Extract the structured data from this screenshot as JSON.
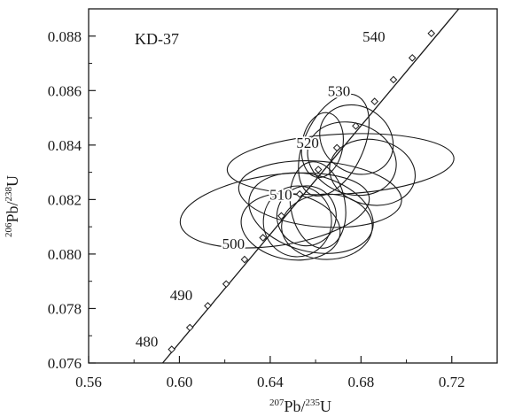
{
  "chart_data": {
    "type": "scatter",
    "title": "",
    "sample_label": "KD-37",
    "xlabel": {
      "sup1": "207",
      "el1": "Pb/",
      "sup2": "235",
      "el2": "U"
    },
    "ylabel": {
      "sup1": "206",
      "el1": "Pb/",
      "sup2": "238",
      "el2": "U"
    },
    "xlim": [
      0.56,
      0.74
    ],
    "ylim": [
      0.076,
      0.089
    ],
    "xticks": [
      0.56,
      0.6,
      0.64,
      0.68,
      0.72
    ],
    "xtick_labels": [
      "0.56",
      "0.60",
      "0.64",
      "0.68",
      "0.72"
    ],
    "yticks": [
      0.076,
      0.078,
      0.08,
      0.082,
      0.084,
      0.086,
      0.088
    ],
    "ytick_labels": [
      "0.076",
      "0.078",
      "0.080",
      "0.082",
      "0.084",
      "0.086",
      "0.088"
    ],
    "grid": false,
    "concordia": {
      "line": [
        [
          0.5926,
          0.076
        ],
        [
          0.7231,
          0.089
        ]
      ],
      "markers": [
        {
          "x": 0.5966,
          "y": 0.0765
        },
        {
          "x": 0.6046,
          "y": 0.0773
        },
        {
          "x": 0.6125,
          "y": 0.0781
        },
        {
          "x": 0.6206,
          "y": 0.0789
        },
        {
          "x": 0.6287,
          "y": 0.0798
        },
        {
          "x": 0.6368,
          "y": 0.0806
        },
        {
          "x": 0.6449,
          "y": 0.0814
        },
        {
          "x": 0.653,
          "y": 0.0822
        },
        {
          "x": 0.6612,
          "y": 0.0831
        },
        {
          "x": 0.6694,
          "y": 0.0839
        },
        {
          "x": 0.6777,
          "y": 0.0847
        },
        {
          "x": 0.686,
          "y": 0.0856
        },
        {
          "x": 0.6943,
          "y": 0.0864
        },
        {
          "x": 0.7026,
          "y": 0.0872
        },
        {
          "x": 0.711,
          "y": 0.0881
        }
      ],
      "age_labels": [
        {
          "text": "480",
          "x": 0.5856,
          "y": 0.0766
        },
        {
          "text": "490",
          "x": 0.6008,
          "y": 0.0783
        },
        {
          "text": "500",
          "x": 0.6238,
          "y": 0.0802
        },
        {
          "text": "510",
          "x": 0.6447,
          "y": 0.082
        },
        {
          "text": "520",
          "x": 0.6565,
          "y": 0.0839
        },
        {
          "text": "530",
          "x": 0.6703,
          "y": 0.0858
        },
        {
          "text": "540",
          "x": 0.6857,
          "y": 0.0878
        }
      ]
    },
    "ellipses": [
      {
        "cx": 0.671,
        "cy": 0.0833,
        "rx": 0.05,
        "ry": 0.0011,
        "rot": -3
      },
      {
        "cx": 0.642,
        "cy": 0.0816,
        "rx": 0.042,
        "ry": 0.0013,
        "rot": -8
      },
      {
        "cx": 0.662,
        "cy": 0.0822,
        "rx": 0.036,
        "ry": 0.0012,
        "rot": 5
      },
      {
        "cx": 0.649,
        "cy": 0.081,
        "rx": 0.022,
        "ry": 0.0012,
        "rot": 10
      },
      {
        "cx": 0.656,
        "cy": 0.0814,
        "rx": 0.013,
        "ry": 0.0011,
        "rot": 20
      },
      {
        "cx": 0.652,
        "cy": 0.0812,
        "rx": 0.015,
        "ry": 0.0013,
        "rot": 5
      },
      {
        "cx": 0.661,
        "cy": 0.0818,
        "rx": 0.012,
        "ry": 0.0016,
        "rot": -10
      },
      {
        "cx": 0.665,
        "cy": 0.081,
        "rx": 0.02,
        "ry": 0.0012,
        "rot": 0
      },
      {
        "cx": 0.658,
        "cy": 0.0815,
        "rx": 0.028,
        "ry": 0.0014,
        "rot": 15
      },
      {
        "cx": 0.668,
        "cy": 0.084,
        "rx": 0.013,
        "ry": 0.002,
        "rot": 25
      },
      {
        "cx": 0.676,
        "cy": 0.0835,
        "rx": 0.02,
        "ry": 0.0013,
        "rot": 20
      },
      {
        "cx": 0.678,
        "cy": 0.0842,
        "rx": 0.017,
        "ry": 0.0012,
        "rot": 35
      },
      {
        "cx": 0.685,
        "cy": 0.083,
        "rx": 0.019,
        "ry": 0.0012,
        "rot": 10
      },
      {
        "cx": 0.663,
        "cy": 0.084,
        "rx": 0.009,
        "ry": 0.0012,
        "rot": 10
      }
    ]
  }
}
